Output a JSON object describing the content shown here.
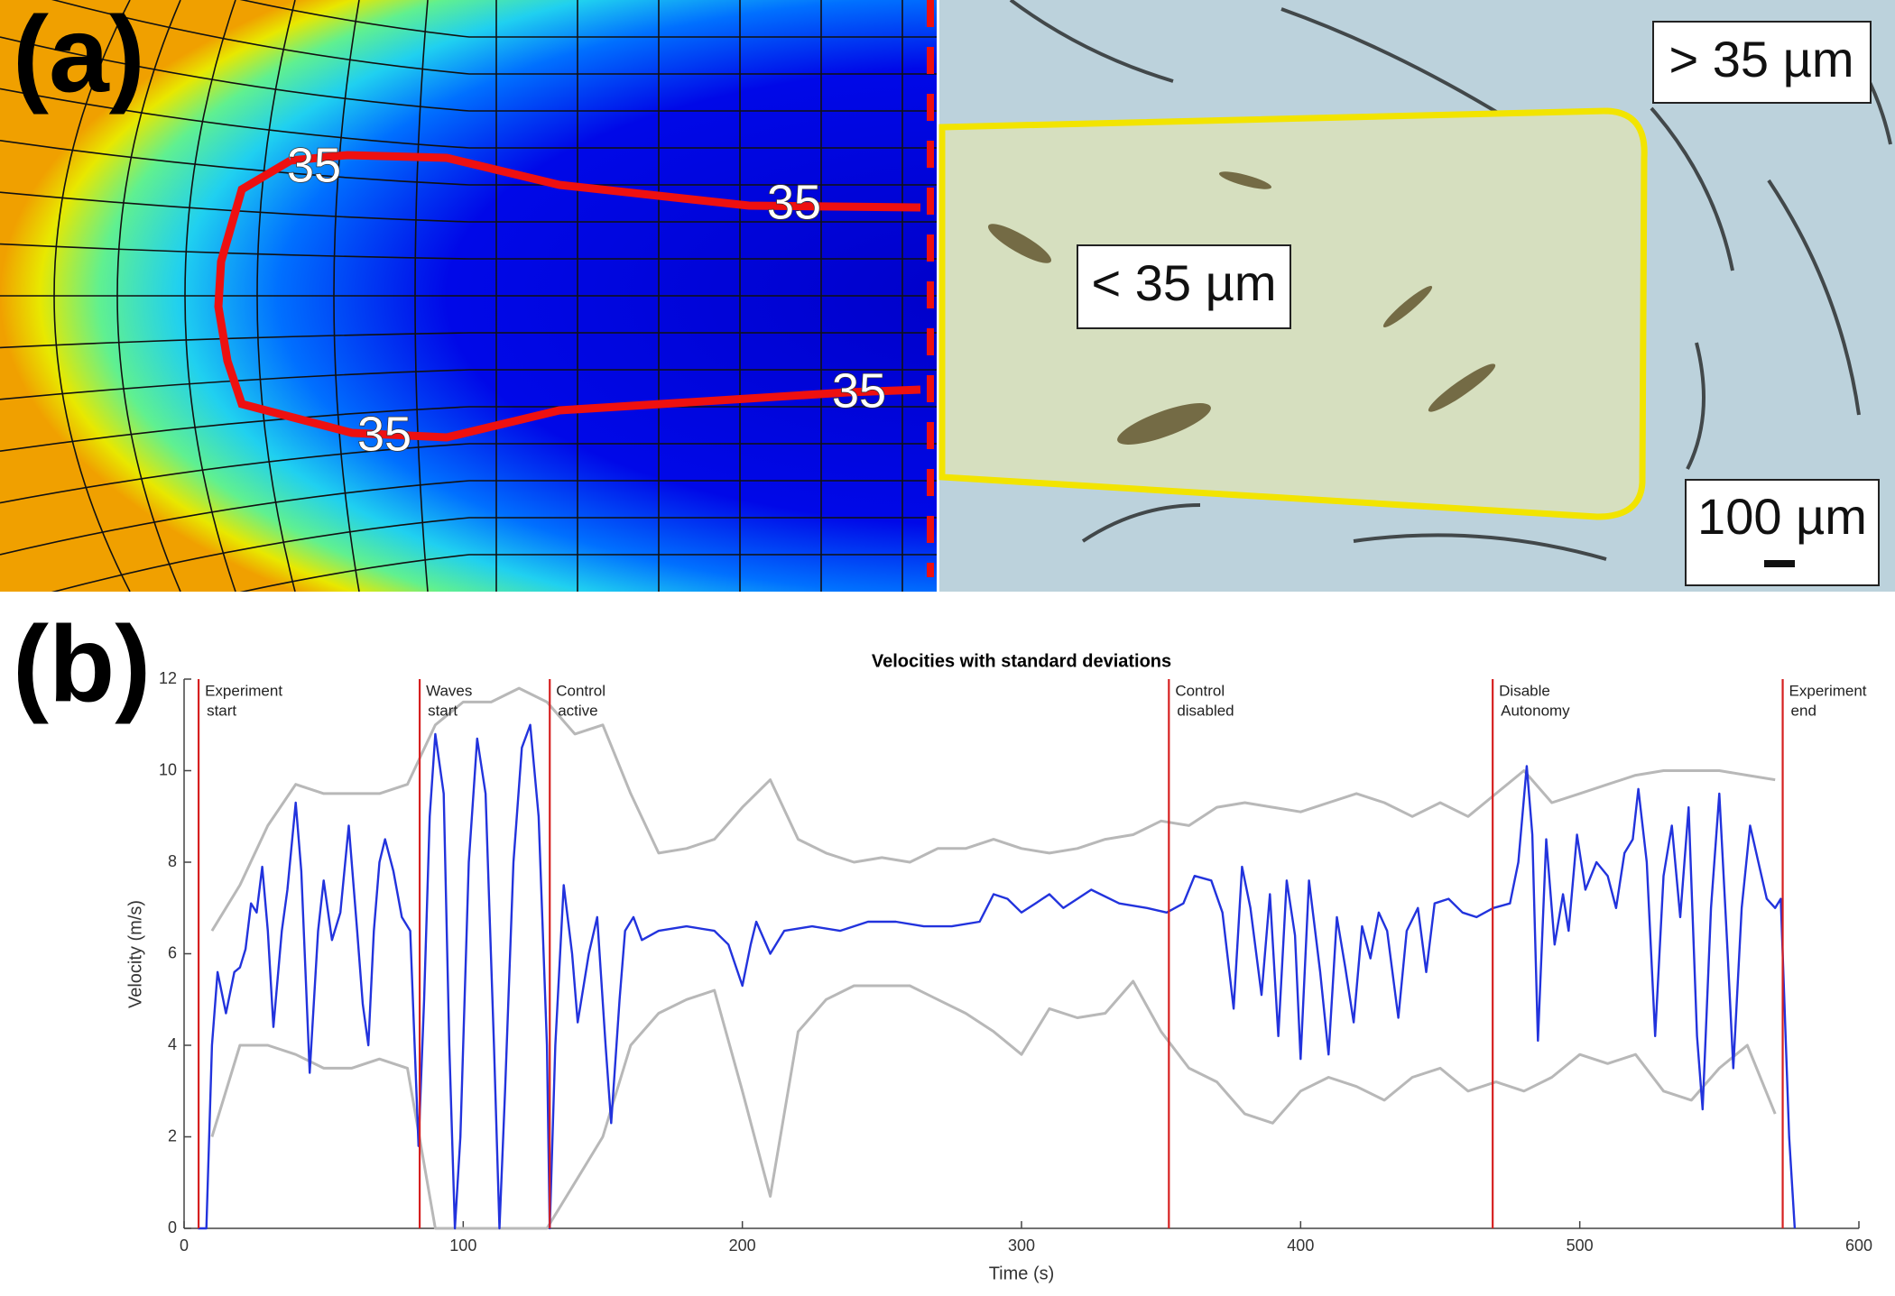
{
  "panel_a": {
    "label": "(a)",
    "contour_labels": [
      "35",
      "35",
      "35",
      "35"
    ],
    "region_labels": [
      "> 35 µm",
      "< 35 µm"
    ],
    "scale_bar": "100 µm"
  },
  "panel_b": {
    "label": "(b)"
  },
  "chart_data": {
    "type": "line",
    "title": "Velocities with standard deviations",
    "xlabel": "Time (s)",
    "ylabel": "Velocity (m/s)",
    "xlim": [
      0,
      600
    ],
    "ylim": [
      0,
      12
    ],
    "xticks": [
      0,
      100,
      200,
      300,
      400,
      500,
      600
    ],
    "yticks": [
      0,
      2,
      4,
      6,
      8,
      10,
      12
    ],
    "series": [
      {
        "color": "#b8b8b8",
        "x": [
          10,
          20,
          30,
          40,
          50,
          60,
          70,
          80,
          90,
          100,
          110,
          120,
          130,
          140,
          150,
          160,
          170,
          180,
          190,
          200,
          210,
          220,
          230,
          240,
          250,
          260,
          270,
          280,
          290,
          300,
          310,
          320,
          330,
          340,
          350,
          360,
          370,
          380,
          390,
          400,
          410,
          420,
          430,
          440,
          450,
          460,
          470,
          480,
          490,
          500,
          510,
          520,
          530,
          540,
          550,
          560,
          570
        ],
        "values": [
          6.5,
          7.5,
          8.8,
          9.7,
          9.5,
          9.5,
          9.5,
          9.7,
          11,
          11.5,
          11.5,
          11.8,
          11.5,
          10.8,
          11,
          9.5,
          8.2,
          8.3,
          8.5,
          9.2,
          9.8,
          8.5,
          8.2,
          8.0,
          8.1,
          8.0,
          8.3,
          8.3,
          8.5,
          8.3,
          8.2,
          8.3,
          8.5,
          8.6,
          8.9,
          8.8,
          9.2,
          9.3,
          9.2,
          9.1,
          9.3,
          9.5,
          9.3,
          9.0,
          9.3,
          9.0,
          9.5,
          10.0,
          9.3,
          9.5,
          9.7,
          9.9,
          10.0,
          10.0,
          10.0,
          9.9,
          9.8
        ]
      },
      {
        "color": "#b8b8b8",
        "x": [
          10,
          20,
          30,
          40,
          50,
          60,
          70,
          80,
          90,
          100,
          110,
          120,
          130,
          140,
          150,
          160,
          170,
          180,
          190,
          200,
          210,
          220,
          230,
          240,
          250,
          260,
          270,
          280,
          290,
          300,
          310,
          320,
          330,
          340,
          350,
          360,
          370,
          380,
          390,
          400,
          410,
          420,
          430,
          440,
          450,
          460,
          470,
          480,
          490,
          500,
          510,
          520,
          530,
          540,
          550,
          560,
          570
        ],
        "values": [
          2,
          4,
          4,
          3.8,
          3.5,
          3.5,
          3.7,
          3.5,
          0,
          0,
          0,
          0,
          0,
          1,
          2,
          4,
          4.7,
          5,
          5.2,
          3,
          0.7,
          4.3,
          5.0,
          5.3,
          5.3,
          5.3,
          5.0,
          4.7,
          4.3,
          3.8,
          4.8,
          4.6,
          4.7,
          5.4,
          4.3,
          3.5,
          3.2,
          2.5,
          2.3,
          3.0,
          3.3,
          3.1,
          2.8,
          3.3,
          3.5,
          3.0,
          3.2,
          3.0,
          3.3,
          3.8,
          3.6,
          3.8,
          3.0,
          2.8,
          3.5,
          4.0,
          2.5
        ]
      },
      {
        "color": "#2233dd",
        "x": [
          5,
          8,
          10,
          12,
          15,
          18,
          20,
          22,
          24,
          26,
          28,
          30,
          32,
          35,
          37,
          40,
          42,
          45,
          48,
          50,
          53,
          56,
          59,
          62,
          64,
          66,
          68,
          70,
          72,
          75,
          78,
          81,
          84,
          86,
          88,
          90,
          93,
          95,
          97,
          99,
          102,
          105,
          108,
          111,
          113,
          115,
          118,
          121,
          124,
          127,
          130,
          131,
          133,
          136,
          139,
          141,
          145,
          148,
          151,
          153,
          156,
          158,
          161,
          164,
          170,
          180,
          190,
          195,
          200,
          203,
          205,
          210,
          215,
          225,
          235,
          245,
          255,
          265,
          275,
          285,
          290,
          295,
          300,
          305,
          310,
          315,
          320,
          325,
          335,
          345,
          352,
          358,
          362,
          368,
          372,
          376,
          379,
          382,
          386,
          389,
          392,
          395,
          398,
          400,
          403,
          407,
          410,
          413,
          416,
          419,
          422,
          425,
          428,
          431,
          435,
          438,
          442,
          445,
          448,
          453,
          458,
          463,
          469,
          475,
          478,
          481,
          483,
          485,
          488,
          491,
          494,
          496,
          499,
          502,
          506,
          510,
          513,
          516,
          519,
          521,
          524,
          527,
          530,
          533,
          536,
          539,
          542,
          544,
          547,
          550,
          553,
          555,
          558,
          561,
          564,
          567,
          570,
          572,
          575,
          577
        ],
        "values": [
          0,
          0,
          4,
          5.6,
          4.7,
          5.6,
          5.7,
          6.1,
          7.1,
          6.9,
          7.9,
          6.5,
          4.4,
          6.5,
          7.4,
          9.3,
          7.8,
          3.4,
          6.5,
          7.6,
          6.3,
          6.9,
          8.8,
          6.5,
          4.9,
          4.0,
          6.5,
          8.0,
          8.5,
          7.8,
          6.8,
          6.5,
          1.8,
          5,
          9,
          10.8,
          9.5,
          4,
          0,
          2,
          8,
          10.7,
          9.5,
          4,
          0,
          3,
          8,
          10.5,
          11,
          9,
          4,
          0,
          4,
          7.5,
          6,
          4.5,
          6,
          6.8,
          4,
          2.3,
          5,
          6.5,
          6.8,
          6.3,
          6.5,
          6.6,
          6.5,
          6.2,
          5.3,
          6.2,
          6.7,
          6.0,
          6.5,
          6.6,
          6.5,
          6.7,
          6.7,
          6.6,
          6.6,
          6.7,
          7.3,
          7.2,
          6.9,
          7.1,
          7.3,
          7.0,
          7.2,
          7.4,
          7.1,
          7.0,
          6.9,
          7.1,
          7.7,
          7.6,
          6.9,
          4.8,
          7.9,
          7.0,
          5.1,
          7.3,
          4.2,
          7.6,
          6.4,
          3.7,
          7.6,
          5.6,
          3.8,
          6.8,
          5.7,
          4.5,
          6.6,
          5.9,
          6.9,
          6.5,
          4.6,
          6.5,
          7.0,
          5.6,
          7.1,
          7.2,
          6.9,
          6.8,
          7.0,
          7.1,
          8.0,
          10.1,
          8.6,
          4.1,
          8.5,
          6.2,
          7.3,
          6.5,
          8.6,
          7.4,
          8.0,
          7.7,
          7.0,
          8.2,
          8.5,
          9.6,
          8.0,
          4.2,
          7.7,
          8.8,
          6.8,
          9.2,
          4.2,
          2.6,
          7.0,
          9.5,
          6.0,
          3.5,
          7.0,
          8.8,
          8.0,
          7.2,
          7.0,
          7.2,
          2,
          0
        ]
      }
    ],
    "events": [
      {
        "x": 5.2,
        "label": [
          "Experiment",
          "start"
        ]
      },
      {
        "x": 84.4,
        "label": [
          "Waves",
          "start"
        ]
      },
      {
        "x": 131,
        "label": [
          "Control",
          "active"
        ]
      },
      {
        "x": 352.8,
        "label": [
          "Control",
          "disabled"
        ]
      },
      {
        "x": 468.8,
        "label": [
          "Disable",
          "Autonomy"
        ]
      },
      {
        "x": 572.7,
        "label": [
          "Experiment",
          "end"
        ]
      }
    ],
    "event_color": "#d62020"
  }
}
